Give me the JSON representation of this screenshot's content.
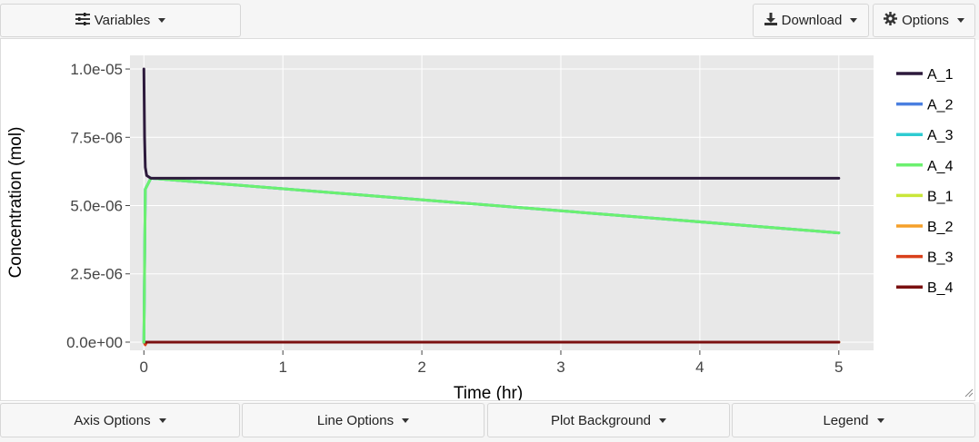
{
  "toolbar": {
    "variables_label": "Variables",
    "download_label": "Download",
    "options_label": "Options"
  },
  "bottom_toolbar": {
    "axis_options_label": "Axis Options",
    "line_options_label": "Line Options",
    "plot_background_label": "Plot Background",
    "legend_label": "Legend"
  },
  "chart_data": {
    "type": "line",
    "xlabel": "Time (hr)",
    "ylabel": "Concentration (mol)",
    "xlim": [
      -0.1,
      5.25
    ],
    "ylim": [
      -3e-07,
      1.05e-05
    ],
    "x_ticks": [
      0,
      1,
      2,
      3,
      4,
      5
    ],
    "x_tick_labels": [
      "0",
      "1",
      "2",
      "3",
      "4",
      "5"
    ],
    "y_ticks": [
      0,
      2.5e-06,
      5e-06,
      7.5e-06,
      1e-05
    ],
    "y_tick_labels": [
      "0.0e+00",
      "2.5e-06",
      "5.0e-06",
      "7.5e-06",
      "1.0e-05"
    ],
    "grid": true,
    "legend_position": "right",
    "plot_background": "#e8e8e8",
    "series": [
      {
        "name": "A_1",
        "color": "#2d1a3c",
        "x": [
          0,
          0.005,
          0.01,
          0.02,
          0.05,
          5
        ],
        "y": [
          1e-05,
          7.5e-06,
          6.4e-06,
          6.1e-06,
          6e-06,
          6e-06
        ]
      },
      {
        "name": "A_2",
        "color": "#4a7fe0",
        "x": [
          0,
          0.01,
          0.05,
          5
        ],
        "y": [
          0,
          5.6e-06,
          6e-06,
          4e-06
        ]
      },
      {
        "name": "A_3",
        "color": "#2ecbd1",
        "x": [
          0,
          0.01,
          0.05,
          5
        ],
        "y": [
          0,
          5.6e-06,
          6e-06,
          4e-06
        ]
      },
      {
        "name": "A_4",
        "color": "#6cf06f",
        "x": [
          0,
          0.01,
          0.05,
          5
        ],
        "y": [
          0,
          5.6e-06,
          6e-06,
          4e-06
        ]
      },
      {
        "name": "B_1",
        "color": "#c9e639",
        "x": [
          0,
          0.02,
          5
        ],
        "y": [
          0,
          0,
          0
        ]
      },
      {
        "name": "B_2",
        "color": "#f5a02a",
        "x": [
          0,
          0.02,
          5
        ],
        "y": [
          0,
          0,
          0
        ]
      },
      {
        "name": "B_3",
        "color": "#d9401a",
        "x": [
          0,
          0.01,
          0.02,
          5
        ],
        "y": [
          0,
          -1e-07,
          0,
          0
        ]
      },
      {
        "name": "B_4",
        "color": "#7a0f0f",
        "x": [
          0,
          0.02,
          5
        ],
        "y": [
          0,
          0,
          0
        ]
      }
    ]
  }
}
